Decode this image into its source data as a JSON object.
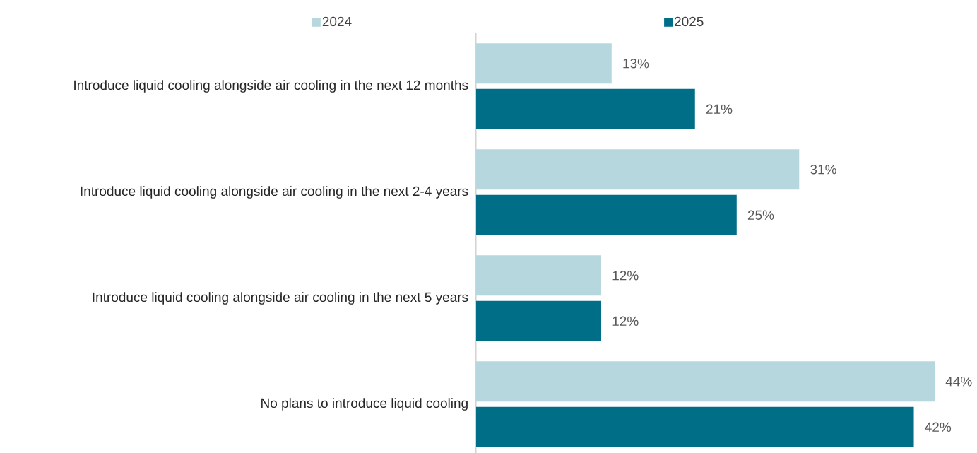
{
  "chart_data": {
    "type": "bar",
    "orientation": "horizontal",
    "legend": "top",
    "categories": [
      "Introduce liquid cooling alongside air cooling in the next 12 months",
      "Introduce liquid cooling alongside air cooling in the next 2-4 years",
      "Introduce liquid cooling alongside air cooling in the next 5 years",
      "No plans to introduce liquid cooling"
    ],
    "series": [
      {
        "name": "2024",
        "color": "#b7d7de",
        "values": [
          13,
          31,
          12,
          44
        ],
        "value_labels": [
          "13%",
          "31%",
          "12%",
          "44%"
        ]
      },
      {
        "name": "2025",
        "color": "#006e87",
        "values": [
          21,
          25,
          12,
          42
        ],
        "value_labels": [
          "21%",
          "25%",
          "12%",
          "42%"
        ]
      }
    ]
  }
}
